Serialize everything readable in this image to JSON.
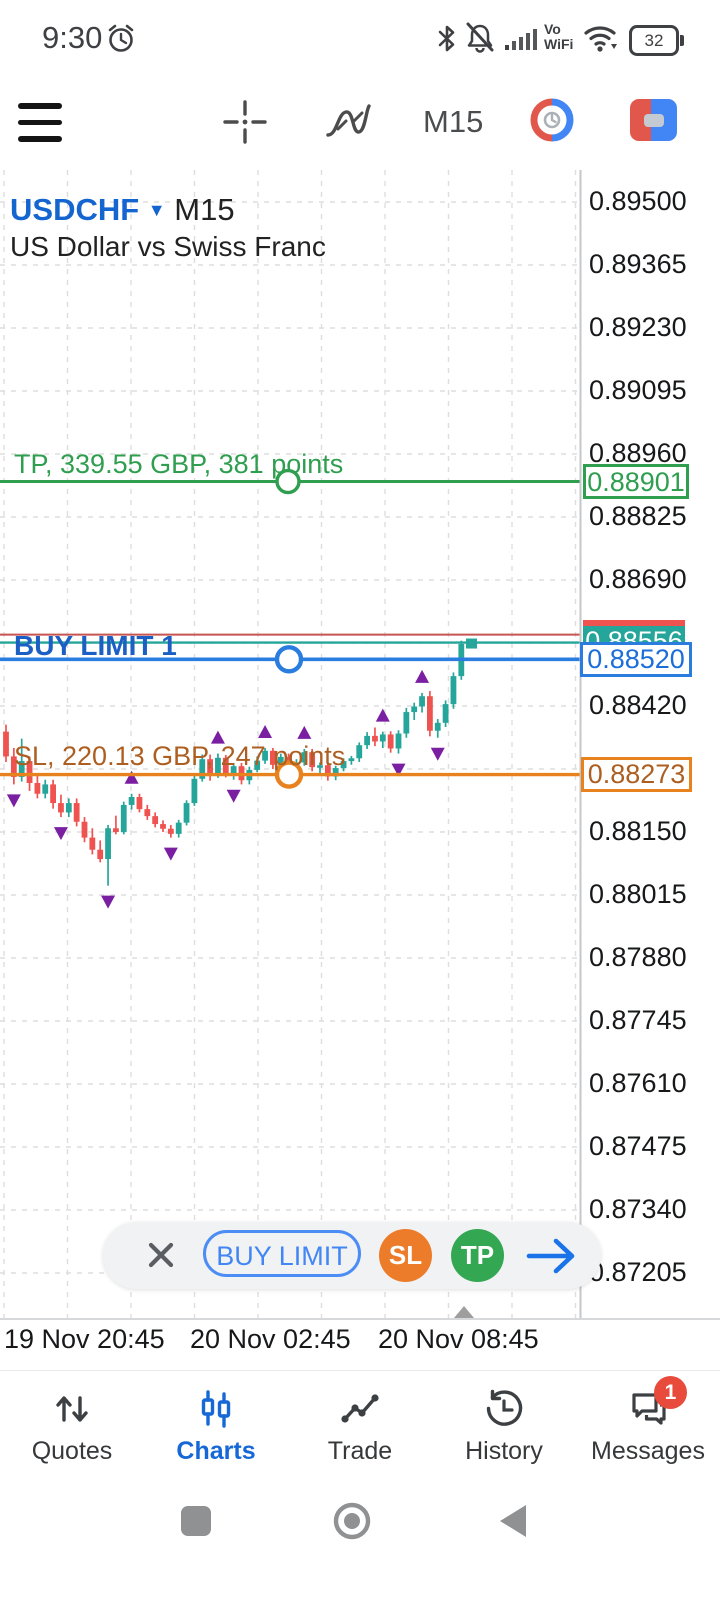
{
  "status_bar": {
    "time": "9:30",
    "battery_percent": "32",
    "vowifi_line1": "Vo",
    "vowifi_line2": "WiFi",
    "icons": [
      "alarm",
      "bluetooth",
      "notifications-muted",
      "cell-signal",
      "wifi",
      "battery"
    ]
  },
  "toolbar": {
    "timeframe_label": "M15",
    "icons": [
      "menu",
      "crosshair",
      "indicators",
      "timeframe",
      "objects",
      "new-order"
    ]
  },
  "chart_data": {
    "type": "candlestick",
    "symbol_label": "USDCHF",
    "timeframe": "M15",
    "description": "US Dollar vs Swiss Franc",
    "y_axis_ticks": [
      {
        "label": "0.89500",
        "price": 0.895
      },
      {
        "label": "0.89365",
        "price": 0.89365
      },
      {
        "label": "0.89230",
        "price": 0.8923
      },
      {
        "label": "0.89095",
        "price": 0.89095
      },
      {
        "label": "0.88960",
        "price": 0.8896
      },
      {
        "label": "0.88825",
        "price": 0.88825
      },
      {
        "label": "0.88690",
        "price": 0.8869
      },
      {
        "label": "0.88420",
        "price": 0.8842
      },
      {
        "label": "0.88150",
        "price": 0.8815
      },
      {
        "label": "0.88015",
        "price": 0.88015
      },
      {
        "label": "0.87880",
        "price": 0.8788
      },
      {
        "label": "0.87745",
        "price": 0.87745
      },
      {
        "label": "0.87610",
        "price": 0.8761
      },
      {
        "label": "0.87475",
        "price": 0.87475
      },
      {
        "label": "0.87340",
        "price": 0.8734
      },
      {
        "label": "0.87205",
        "price": 0.87205
      }
    ],
    "x_axis_labels": [
      "19 Nov 20:45",
      "20 Nov 02:45",
      "20 Nov 08:45"
    ],
    "levels": {
      "tp": {
        "price": 0.88901,
        "label": "TP, 339.55 GBP, 381 points",
        "axis_label": "0.88901"
      },
      "sl": {
        "price": 0.88273,
        "label": "SL, 220.13 GBP, 247 points",
        "axis_label": "0.88273"
      },
      "buy_limit": {
        "price": 0.8852,
        "label": "BUY LIMIT 1",
        "axis_label": "0.88520"
      },
      "bid": {
        "price": 0.88556,
        "axis_label": "0.88556"
      },
      "ask": {
        "price": 0.88573
      }
    },
    "last_price_marker": 0.88556,
    "candles": [
      [
        0.88365,
        0.8838,
        0.883,
        0.88312
      ],
      [
        0.88312,
        0.8833,
        0.88252,
        0.88268
      ],
      [
        0.88268,
        0.8835,
        0.88258,
        0.88302
      ],
      [
        0.88302,
        0.88312,
        0.88238,
        0.88255
      ],
      [
        0.88255,
        0.8827,
        0.88222,
        0.88232
      ],
      [
        0.88232,
        0.88262,
        0.88222,
        0.88252
      ],
      [
        0.88252,
        0.88262,
        0.882,
        0.88212
      ],
      [
        0.88212,
        0.8823,
        0.88182,
        0.88192
      ],
      [
        0.88192,
        0.88222,
        0.88182,
        0.88212
      ],
      [
        0.88212,
        0.88222,
        0.88162,
        0.88172
      ],
      [
        0.88172,
        0.88182,
        0.88128,
        0.88138
      ],
      [
        0.88138,
        0.88158,
        0.88102,
        0.88112
      ],
      [
        0.88112,
        0.88132,
        0.88085,
        0.88092
      ],
      [
        0.88092,
        0.88165,
        0.88035,
        0.88158
      ],
      [
        0.88158,
        0.88185,
        0.88145,
        0.8815
      ],
      [
        0.8815,
        0.88215,
        0.88145,
        0.88208
      ],
      [
        0.88208,
        0.88232,
        0.88198,
        0.88225
      ],
      [
        0.88225,
        0.88232,
        0.88192,
        0.88199
      ],
      [
        0.88199,
        0.88208,
        0.88176,
        0.88184
      ],
      [
        0.88184,
        0.88192,
        0.8816,
        0.88167
      ],
      [
        0.88167,
        0.88175,
        0.8815,
        0.88157
      ],
      [
        0.88157,
        0.88165,
        0.88138,
        0.88146
      ],
      [
        0.88146,
        0.88176,
        0.88138,
        0.8817
      ],
      [
        0.8817,
        0.88218,
        0.88164,
        0.88212
      ],
      [
        0.88212,
        0.88272,
        0.88206,
        0.88264
      ],
      [
        0.88264,
        0.88316,
        0.88258,
        0.88306
      ],
      [
        0.88306,
        0.88316,
        0.8826,
        0.88271
      ],
      [
        0.88271,
        0.88318,
        0.88266,
        0.88309
      ],
      [
        0.88309,
        0.88315,
        0.88267,
        0.88276
      ],
      [
        0.88276,
        0.88298,
        0.88262,
        0.88291
      ],
      [
        0.88291,
        0.88298,
        0.88252,
        0.88261
      ],
      [
        0.88261,
        0.8829,
        0.88252,
        0.88283
      ],
      [
        0.88283,
        0.88312,
        0.88278,
        0.88303
      ],
      [
        0.88303,
        0.8833,
        0.88296,
        0.88324
      ],
      [
        0.88324,
        0.8833,
        0.88285,
        0.88294
      ],
      [
        0.88294,
        0.88318,
        0.88287,
        0.88311
      ],
      [
        0.88311,
        0.88318,
        0.88268,
        0.88277
      ],
      [
        0.88277,
        0.88306,
        0.8827,
        0.88299
      ],
      [
        0.88299,
        0.88328,
        0.88292,
        0.88321
      ],
      [
        0.88321,
        0.88328,
        0.8828,
        0.88289
      ],
      [
        0.88289,
        0.88299,
        0.8827,
        0.88293
      ],
      [
        0.88293,
        0.88298,
        0.8826,
        0.88269
      ],
      [
        0.88269,
        0.88292,
        0.88261,
        0.88287
      ],
      [
        0.88287,
        0.88308,
        0.8828,
        0.88302
      ],
      [
        0.88302,
        0.88313,
        0.88294,
        0.88308
      ],
      [
        0.88308,
        0.88342,
        0.883,
        0.88336
      ],
      [
        0.88336,
        0.88364,
        0.88328,
        0.88356
      ],
      [
        0.88356,
        0.88374,
        0.88334,
        0.88344
      ],
      [
        0.88344,
        0.88365,
        0.8833,
        0.88359
      ],
      [
        0.88359,
        0.88366,
        0.8832,
        0.88329
      ],
      [
        0.88329,
        0.88368,
        0.88318,
        0.88361
      ],
      [
        0.88361,
        0.88416,
        0.88352,
        0.88407
      ],
      [
        0.88407,
        0.88427,
        0.8839,
        0.88419
      ],
      [
        0.88419,
        0.88448,
        0.88406,
        0.88441
      ],
      [
        0.88441,
        0.88452,
        0.88355,
        0.88367
      ],
      [
        0.88367,
        0.88392,
        0.88352,
        0.88384
      ],
      [
        0.88384,
        0.88432,
        0.88375,
        0.88424
      ],
      [
        0.88424,
        0.88492,
        0.88414,
        0.88484
      ],
      [
        0.88484,
        0.8856,
        0.88476,
        0.88553
      ]
    ],
    "fractal_markers": [
      {
        "i": 1,
        "dir": "down"
      },
      {
        "i": 7,
        "dir": "down"
      },
      {
        "i": 13,
        "dir": "down"
      },
      {
        "i": 16,
        "dir": "up"
      },
      {
        "i": 21,
        "dir": "down"
      },
      {
        "i": 27,
        "dir": "up"
      },
      {
        "i": 29,
        "dir": "down"
      },
      {
        "i": 33,
        "dir": "up"
      },
      {
        "i": 38,
        "dir": "up"
      },
      {
        "i": 48,
        "dir": "up"
      },
      {
        "i": 50,
        "dir": "down"
      },
      {
        "i": 53,
        "dir": "up"
      },
      {
        "i": 55,
        "dir": "down"
      }
    ]
  },
  "order_panel": {
    "buy_limit_label": "BUY LIMIT",
    "sl_label": "SL",
    "tp_label": "TP",
    "icons": [
      "close",
      "submit-arrow"
    ]
  },
  "bottom_nav": {
    "items": [
      {
        "label": "Quotes",
        "active": false
      },
      {
        "label": "Charts",
        "active": true
      },
      {
        "label": "Trade",
        "active": false
      },
      {
        "label": "History",
        "active": false
      },
      {
        "label": "Messages",
        "active": false,
        "badge": "1"
      }
    ]
  },
  "android_nav": {
    "icons": [
      "recents",
      "home",
      "back"
    ]
  },
  "colors": {
    "candle_up": "#26a69a",
    "candle_down": "#ef5350",
    "tp_green": "#2f9e4f",
    "sl_orange": "#e8821f",
    "sl_text": "#ad5e21",
    "buy_limit_blue": "#2a7cdf",
    "ask_red": "#c75450",
    "bid_teal": "#26a69a",
    "fractal_purple": "#7b1fa2",
    "accent_blue": "#1668d6",
    "badge_red": "#e84b3c"
  }
}
